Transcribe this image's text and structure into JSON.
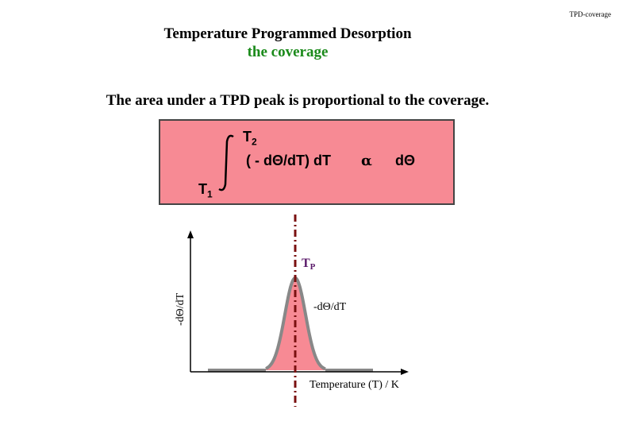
{
  "header": {
    "corner_label": "TPD-coverage"
  },
  "title": {
    "line1": "Temperature Programmed Desorption",
    "line2": "the coverage",
    "line2_color": "#1a8a1a"
  },
  "statement": "The area under a TPD peak is proportional to the coverage.",
  "formula": {
    "upper_limit": "T",
    "upper_limit_sub": "2",
    "integrand": "( - dΘ/dT) dT",
    "proportional_symbol": "α",
    "rhs": "dΘ",
    "lower_limit": "T",
    "lower_limit_sub": "1",
    "box_color": "#f78a94"
  },
  "chart_data": {
    "type": "area",
    "ylabel": "-dΘ/dT",
    "xlabel": "Temperature (T) / K",
    "peak_label": "T",
    "peak_label_sub": "P",
    "curve_label": "-dΘ/dT",
    "fill_color": "#f78a94",
    "curve_color": "#888888",
    "marker_color": "#7a1010"
  }
}
